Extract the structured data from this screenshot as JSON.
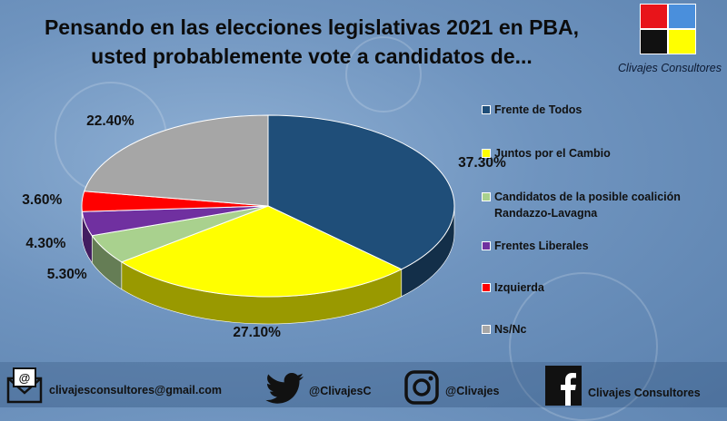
{
  "title_line1": "Pensando en las elecciones legislativas 2021 en PBA,",
  "title_line2": "usted probablemente vote a candidatos de...",
  "logo": {
    "name": "Clivajes Consultores",
    "colors": [
      "#e8141a",
      "#4a8fdc",
      "#111111",
      "#ffff00"
    ]
  },
  "chart_data": {
    "type": "pie",
    "title": "Pensando en las elecciones legislativas 2021 en PBA, usted probablemente vote a candidatos de...",
    "labels": [
      "Frente de Todos",
      "Juntos por el Cambio",
      "Candidatos de la posible coalición Randazzo-Lavagna",
      "Frentes Liberales",
      "Izquierda",
      "Ns/Nc"
    ],
    "legend_lines": [
      [
        "Frente de Todos"
      ],
      [
        "Juntos por el Cambio"
      ],
      [
        "Candidatos de la posible coalición",
        "Randazzo-Lavagna"
      ],
      [
        "Frentes Liberales"
      ],
      [
        "Izquierda"
      ],
      [
        "Ns/Nc"
      ]
    ],
    "values": [
      37.3,
      27.1,
      5.3,
      4.3,
      3.6,
      22.4
    ],
    "value_labels": [
      "37.30%",
      "27.10%",
      "5.30%",
      "4.30%",
      "3.60%",
      "22.40%"
    ],
    "colors": [
      "#1f4e79",
      "#ffff00",
      "#a9d18e",
      "#7030a0",
      "#ff0000",
      "#a6a6a6"
    ],
    "legend_position": "right",
    "style": "3d"
  },
  "footer": {
    "email": "clivajesconsultores@gmail.com",
    "twitter": "@ClivajesC",
    "instagram": "@Clivajes",
    "facebook": "Clivajes Consultores"
  }
}
